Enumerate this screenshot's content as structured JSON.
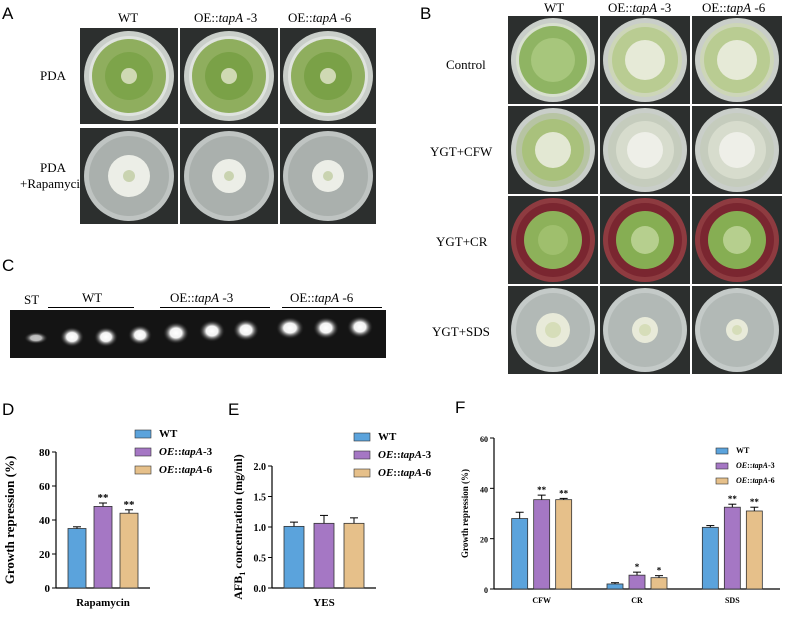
{
  "panelA": {
    "letter": "A",
    "columns": [
      {
        "pre": "WT",
        "it": "",
        "post": ""
      },
      {
        "pre": "OE::",
        "it": "tapA",
        "post": " -3"
      },
      {
        "pre": "OE::",
        "it": "tapA",
        "post": " -6"
      }
    ],
    "rows": [
      {
        "line1": "PDA",
        "line2": ""
      },
      {
        "line1": "PDA",
        "line2": "+Rapamycin"
      }
    ]
  },
  "panelB": {
    "letter": "B",
    "columns": [
      {
        "pre": "WT",
        "it": "",
        "post": ""
      },
      {
        "pre": "OE::",
        "it": "tapA",
        "post": " -3"
      },
      {
        "pre": "OE::",
        "it": "tapA",
        "post": " -6"
      }
    ],
    "rows": [
      "Control",
      "YGT+CFW",
      "YGT+CR",
      "YGT+SDS"
    ]
  },
  "panelC": {
    "letter": "C",
    "st_label": "ST",
    "groups": [
      {
        "pre": "WT",
        "it": "",
        "post": ""
      },
      {
        "pre": "OE::",
        "it": "tapA",
        "post": " -3"
      },
      {
        "pre": "OE::",
        "it": "tapA",
        "post": " -6"
      }
    ]
  },
  "colors": {
    "wt": "#5ba3dc",
    "oe3": "#a577c4",
    "oe6": "#e6c08a"
  },
  "chart_data": [
    {
      "panel": "D",
      "type": "bar",
      "ylabel": "Growth repression (%)",
      "xlabel": "Rapamycin",
      "ylim": [
        0,
        80
      ],
      "yticks": [
        "0",
        "20",
        "40",
        "60",
        "80"
      ],
      "legend": [
        "WT",
        "OE::tapA-3",
        "OE::tapA-6"
      ],
      "categories": [
        ""
      ],
      "series": [
        {
          "name": "WT",
          "values": [
            35
          ],
          "errors": [
            1
          ],
          "sig": [
            ""
          ]
        },
        {
          "name": "OE::tapA-3",
          "values": [
            48
          ],
          "errors": [
            2
          ],
          "sig": [
            "**"
          ]
        },
        {
          "name": "OE::tapA-6",
          "values": [
            44
          ],
          "errors": [
            2
          ],
          "sig": [
            "**"
          ]
        }
      ]
    },
    {
      "panel": "E",
      "type": "bar",
      "ylabel": "AFB1 concentration (mg/ml)",
      "xlabel": "YES",
      "ylim": [
        0,
        2.0
      ],
      "yticks": [
        "0.0",
        "0.5",
        "1.0",
        "1.5",
        "2.0"
      ],
      "legend": [
        "WT",
        "OE::tapA-3",
        "OE::tapA-6"
      ],
      "categories": [
        ""
      ],
      "series": [
        {
          "name": "WT",
          "values": [
            1.01
          ],
          "errors": [
            0.07
          ],
          "sig": [
            ""
          ]
        },
        {
          "name": "OE::tapA-3",
          "values": [
            1.06
          ],
          "errors": [
            0.13
          ],
          "sig": [
            ""
          ]
        },
        {
          "name": "OE::tapA-6",
          "values": [
            1.06
          ],
          "errors": [
            0.09
          ],
          "sig": [
            ""
          ]
        }
      ]
    },
    {
      "panel": "F",
      "type": "bar",
      "ylabel": "Growth repression (%)",
      "xlabel": "",
      "ylim": [
        0,
        60
      ],
      "yticks": [
        "0",
        "20",
        "40",
        "60"
      ],
      "legend": [
        "WT",
        "OE::tapA-3",
        "OE::tapA-6"
      ],
      "categories": [
        "CFW",
        "CR",
        "SDS"
      ],
      "series": [
        {
          "name": "WT",
          "values": [
            28,
            2,
            24.5
          ],
          "errors": [
            2.5,
            0.5,
            0.7
          ],
          "sig": [
            "",
            "",
            ""
          ]
        },
        {
          "name": "OE::tapA-3",
          "values": [
            35.5,
            5.5,
            32.5
          ],
          "errors": [
            1.8,
            1.2,
            1.2
          ],
          "sig": [
            "**",
            "*",
            "**"
          ]
        },
        {
          "name": "OE::tapA-6",
          "values": [
            35.5,
            4.5,
            31
          ],
          "errors": [
            0.5,
            0.8,
            1.5
          ],
          "sig": [
            "**",
            "*",
            "**"
          ]
        }
      ]
    }
  ]
}
